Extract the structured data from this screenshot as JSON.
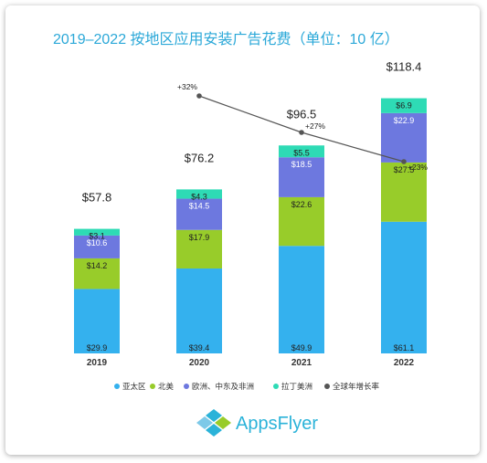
{
  "chart_data": {
    "type": "bar",
    "stacked": true,
    "title": "2019–2022 按地区应用安装广告花费（单位：10 亿）",
    "categories": [
      "2019",
      "2020",
      "2021",
      "2022"
    ],
    "series": [
      {
        "name": "亚太区",
        "color": "#34B1EE",
        "values": [
          29.9,
          39.4,
          49.9,
          61.1
        ],
        "labels": [
          "$29.9",
          "$39.4",
          "$49.9",
          "$61.1"
        ],
        "label_color": "#222222"
      },
      {
        "name": "北美",
        "color": "#98CC2A",
        "values": [
          14.2,
          17.9,
          22.6,
          27.5
        ],
        "labels": [
          "$14.2",
          "$17.9",
          "$22.6",
          "$27.5"
        ],
        "label_color": "#222222"
      },
      {
        "name": "欧洲、中东及非洲",
        "color": "#6D78DF",
        "values": [
          10.6,
          14.5,
          18.5,
          22.9
        ],
        "labels": [
          "$10.6",
          "$14.5",
          "$18.5",
          "$22.9"
        ],
        "label_color": "#ffffff"
      },
      {
        "name": "拉丁美洲",
        "color": "#2EDBB5",
        "values": [
          3.1,
          4.3,
          5.5,
          6.9
        ],
        "labels": [
          "$3.1",
          "$4.3",
          "$5.5",
          "$6.9"
        ],
        "label_color": "#222222"
      }
    ],
    "totals": [
      57.8,
      76.2,
      96.5,
      118.4
    ],
    "total_labels": [
      "$57.8",
      "$76.2",
      "$96.5",
      "$118.4"
    ],
    "growth_series": {
      "name": "全球年增长率",
      "color": "#555555",
      "categories": [
        "2020",
        "2021",
        "2022"
      ],
      "values": [
        32,
        27,
        23
      ],
      "labels": [
        "+32%",
        "+27%",
        "+23%"
      ]
    },
    "legend_position": "bottom",
    "grid": false
  },
  "brand": {
    "logo_text": "AppsFlyer",
    "icon": "appsflyer-icon"
  }
}
